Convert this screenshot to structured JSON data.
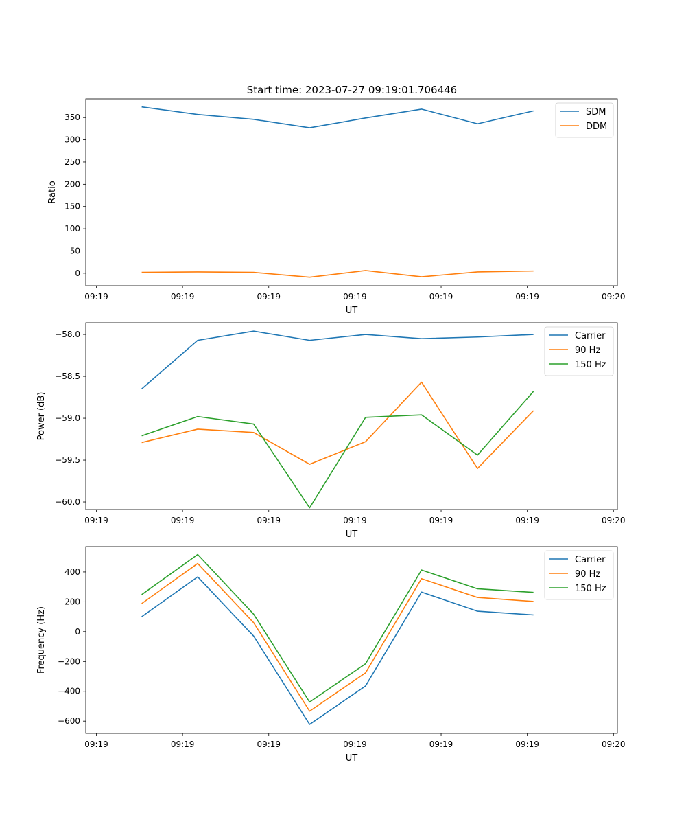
{
  "figure": {
    "title": "Start time: 2023-07-27 09:19:01.706446"
  },
  "colors": {
    "c0": "#1f77b4",
    "c1": "#ff7f0e",
    "c2": "#2ca02c"
  },
  "chart_data": [
    {
      "type": "line",
      "title": "Start time: 2023-07-27 09:19:01.706446",
      "xlabel": "UT",
      "ylabel": "Ratio",
      "x": [
        1,
        2,
        3,
        4,
        5,
        6,
        7,
        8
      ],
      "xlim": [
        0,
        9.5
      ],
      "x_ticks": [
        0.19,
        1.73,
        3.27,
        4.81,
        6.35,
        7.89,
        9.43
      ],
      "x_tick_labels": [
        "09:19",
        "09:19",
        "09:19",
        "09:19",
        "09:19",
        "09:19",
        "09:20"
      ],
      "ylim": [
        -28,
        392
      ],
      "y_ticks": [
        0,
        50,
        100,
        150,
        200,
        250,
        300,
        350
      ],
      "y_tick_labels": [
        "0",
        "50",
        "100",
        "150",
        "200",
        "250",
        "300",
        "350"
      ],
      "legend_position": "top-right",
      "series": [
        {
          "name": "SDM",
          "color": "c0",
          "values": [
            374,
            357,
            346,
            327,
            349,
            369,
            336,
            365
          ]
        },
        {
          "name": "DDM",
          "color": "c1",
          "values": [
            2,
            3,
            2,
            -9,
            6,
            -8,
            3,
            5
          ]
        }
      ]
    },
    {
      "type": "line",
      "title": "",
      "xlabel": "UT",
      "ylabel": "Power (dB)",
      "x": [
        1,
        2,
        3,
        4,
        5,
        6,
        7,
        8
      ],
      "xlim": [
        0,
        9.5
      ],
      "x_ticks": [
        0.19,
        1.73,
        3.27,
        4.81,
        6.35,
        7.89,
        9.43
      ],
      "x_tick_labels": [
        "09:19",
        "09:19",
        "09:19",
        "09:19",
        "09:19",
        "09:19",
        "09:20"
      ],
      "ylim": [
        -60.09,
        -57.86
      ],
      "y_ticks": [
        -60.0,
        -59.5,
        -59.0,
        -58.5,
        -58.0
      ],
      "y_tick_labels": [
        "−60.0",
        "−59.5",
        "−59.0",
        "−58.5",
        "−58.0"
      ],
      "legend_position": "top-right",
      "series": [
        {
          "name": "Carrier",
          "color": "c0",
          "values": [
            -58.65,
            -58.07,
            -57.96,
            -58.07,
            -58.0,
            -58.05,
            -58.03,
            -58.0
          ]
        },
        {
          "name": "90 Hz",
          "color": "c1",
          "values": [
            -59.29,
            -59.13,
            -59.17,
            -59.55,
            -59.28,
            -58.57,
            -59.6,
            -58.91
          ]
        },
        {
          "name": "150 Hz",
          "color": "c2",
          "values": [
            -59.21,
            -58.98,
            -59.07,
            -60.07,
            -58.99,
            -58.96,
            -59.44,
            -58.68
          ]
        }
      ]
    },
    {
      "type": "line",
      "title": "",
      "xlabel": "UT",
      "ylabel": "Frequency (Hz)",
      "x": [
        1,
        2,
        3,
        4,
        5,
        6,
        7,
        8
      ],
      "xlim": [
        0,
        9.5
      ],
      "x_ticks": [
        0.19,
        1.73,
        3.27,
        4.81,
        6.35,
        7.89,
        9.43
      ],
      "x_tick_labels": [
        "09:19",
        "09:19",
        "09:19",
        "09:19",
        "09:19",
        "09:19",
        "09:20"
      ],
      "ylim": [
        -682,
        570
      ],
      "y_ticks": [
        -600,
        -400,
        -200,
        0,
        200,
        400
      ],
      "y_tick_labels": [
        "−600",
        "−400",
        "−200",
        "0",
        "200",
        "400"
      ],
      "legend_position": "top-right",
      "series": [
        {
          "name": "Carrier",
          "color": "c0",
          "values": [
            100,
            367,
            -30,
            -622,
            -364,
            265,
            137,
            112
          ]
        },
        {
          "name": "90 Hz",
          "color": "c1",
          "values": [
            188,
            457,
            60,
            -533,
            -276,
            355,
            229,
            202
          ]
        },
        {
          "name": "150 Hz",
          "color": "c2",
          "values": [
            248,
            517,
            117,
            -472,
            -215,
            413,
            287,
            263
          ]
        }
      ]
    }
  ]
}
